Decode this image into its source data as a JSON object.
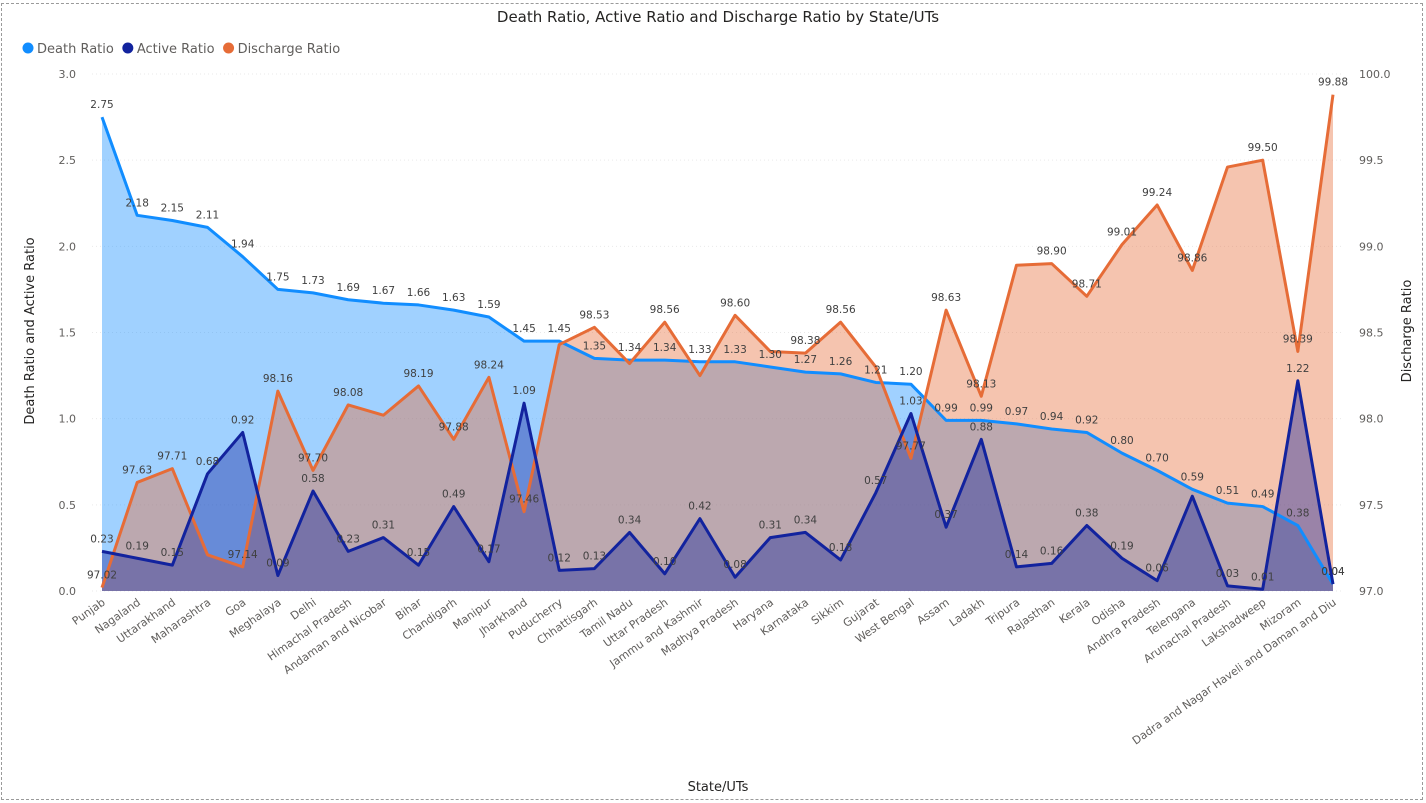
{
  "chart_data": {
    "type": "area",
    "title": "Death Ratio, Active Ratio and Discharge Ratio by State/UTs",
    "xlabel": "State/UTs",
    "ylabel": "Death Ratio and Active Ratio",
    "y2label": "Discharge Ratio",
    "legend_position": "top-left",
    "ylim": [
      0,
      3
    ],
    "y_ticks": [
      "0.0",
      "0.5",
      "1.0",
      "1.5",
      "2.0",
      "2.5",
      "3.0"
    ],
    "y2lim": [
      97,
      100
    ],
    "y2_ticks": [
      "97.0",
      "97.5",
      "98.0",
      "98.5",
      "99.0",
      "99.5",
      "100.0"
    ],
    "categories": [
      "Punjab",
      "Nagaland",
      "Uttarakhand",
      "Maharashtra",
      "Goa",
      "Meghalaya",
      "Delhi",
      "Himachal Pradesh",
      "Andaman and Nicobar",
      "Bihar",
      "Chandigarh",
      "Manipur",
      "Jharkhand",
      "Puducherry",
      "Chhattisgarh",
      "Tamil Nadu",
      "Uttar Pradesh",
      "Jammu and Kashmir",
      "Madhya Pradesh",
      "Haryana",
      "Karnataka",
      "Sikkim",
      "Gujarat",
      "West Bengal",
      "Assam",
      "Ladakh",
      "Tripura",
      "Rajasthan",
      "Kerala",
      "Odisha",
      "Andhra Pradesh",
      "Telengana",
      "Arunachal Pradesh",
      "Lakshadweep",
      "Mizoram",
      "Dadra and Nagar Haveli and Daman and Diu"
    ],
    "series": [
      {
        "name": "Death Ratio",
        "color": "#118DFF",
        "axis": "left",
        "values": [
          2.75,
          2.18,
          2.15,
          2.11,
          1.94,
          1.75,
          1.73,
          1.69,
          1.67,
          1.66,
          1.63,
          1.59,
          1.45,
          1.45,
          1.35,
          1.34,
          1.34,
          1.33,
          1.33,
          1.3,
          1.27,
          1.26,
          1.21,
          1.2,
          0.99,
          0.99,
          0.97,
          0.94,
          0.92,
          0.8,
          0.7,
          0.59,
          0.51,
          0.49,
          0.38,
          0.04
        ],
        "labels": [
          "2.75",
          "2.18",
          "2.15",
          "2.11",
          "1.94",
          "1.75",
          "1.73",
          "1.69",
          "1.67",
          "1.66",
          "1.63",
          "1.59",
          "1.45",
          "1.45",
          "1.35",
          "1.34",
          "1.34",
          "1.33",
          "1.33",
          "1.30",
          "1.27",
          "1.26",
          "1.21",
          "1.20",
          "0.99",
          "0.99",
          "0.97",
          "0.94",
          "0.92",
          "0.80",
          "0.70",
          "0.59",
          "0.51",
          "0.49",
          "0.38",
          "0.04"
        ]
      },
      {
        "name": "Active Ratio",
        "color": "#12239E",
        "axis": "left",
        "values": [
          0.23,
          0.19,
          0.15,
          0.68,
          0.92,
          0.09,
          0.58,
          0.23,
          0.31,
          0.15,
          0.49,
          0.17,
          1.09,
          0.12,
          0.13,
          0.34,
          0.1,
          0.42,
          0.08,
          0.31,
          0.34,
          0.18,
          0.57,
          1.03,
          0.37,
          0.88,
          0.14,
          0.16,
          0.38,
          0.19,
          0.06,
          0.55,
          0.03,
          0.01,
          1.22,
          0.04
        ],
        "labels": [
          "0.23",
          "0.19",
          "0.15",
          "0.68",
          "0.92",
          "0.09",
          "0.58",
          "0.23",
          "0.31",
          "0.15",
          "0.49",
          "0.17",
          "1.09",
          "0.12",
          "0.13",
          "0.34",
          "0.10",
          "0.42",
          "0.08",
          "0.31",
          "0.34",
          "0.18",
          "0.57",
          "1.03",
          "0.37",
          "0.88",
          "0.14",
          "0.16",
          "0.38",
          "0.19",
          "0.06",
          "",
          "0.03",
          "0.01",
          "1.22",
          "0.04"
        ]
      },
      {
        "name": "Discharge Ratio",
        "color": "#E66C37",
        "axis": "right",
        "values": [
          97.02,
          97.63,
          97.71,
          97.21,
          97.14,
          98.16,
          97.7,
          98.08,
          98.02,
          98.19,
          97.88,
          98.24,
          97.46,
          98.43,
          98.53,
          98.32,
          98.56,
          98.25,
          98.6,
          98.39,
          98.38,
          98.56,
          98.3,
          97.77,
          98.63,
          98.13,
          98.89,
          98.9,
          98.71,
          99.01,
          99.24,
          98.86,
          99.46,
          99.5,
          98.39,
          99.88
        ],
        "labels": [
          "97.02",
          "97.63",
          "97.71",
          "",
          "97.14",
          "98.16",
          "97.70",
          "98.08",
          "",
          "98.19",
          "97.88",
          "98.24",
          "97.46",
          "",
          "98.53",
          "",
          "98.56",
          "",
          "98.60",
          "",
          "98.38",
          "98.56",
          "",
          "97.77",
          "98.63",
          "98.13",
          "",
          "98.90",
          "98.71",
          "99.01",
          "99.24",
          "98.86",
          "",
          "99.50",
          "98.39",
          "99.88"
        ]
      }
    ]
  }
}
